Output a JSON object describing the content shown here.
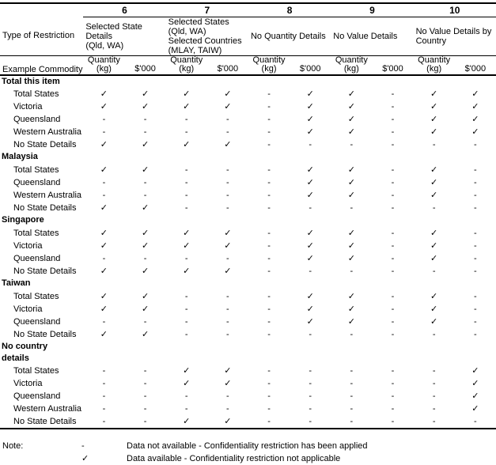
{
  "table": {
    "row_headers": {
      "type_of_restriction": "Type of Restriction",
      "example_commodity": "Example Commodity"
    },
    "measures": {
      "quantity": "Quantity",
      "quantity_unit": "(kg)",
      "value": "$'000"
    },
    "symbols": {
      "check": "✓",
      "dash": "-"
    },
    "columns": [
      {
        "number": "6",
        "restriction": "Selected State\nDetails\n(Qld, WA)"
      },
      {
        "number": "7",
        "restriction": "Selected States\n(Qld, WA)\nSelected Countries\n(MLAY, TAIW)"
      },
      {
        "number": "8",
        "restriction": "No Quantity Details"
      },
      {
        "number": "9",
        "restriction": "No Value Details"
      },
      {
        "number": "10",
        "restriction": "No Value Details by\nCountry"
      }
    ],
    "sections": [
      {
        "title": "Total this item",
        "rows": [
          {
            "label": "Total States",
            "cells": [
              "check",
              "check",
              "check",
              "check",
              "dash",
              "check",
              "check",
              "dash",
              "check",
              "check"
            ]
          },
          {
            "label": "Victoria",
            "cells": [
              "check",
              "check",
              "check",
              "check",
              "dash",
              "check",
              "check",
              "dash",
              "check",
              "check"
            ]
          },
          {
            "label": "Queensland",
            "cells": [
              "dash",
              "dash",
              "dash",
              "dash",
              "dash",
              "check",
              "check",
              "dash",
              "check",
              "check"
            ]
          },
          {
            "label": "Western Australia",
            "cells": [
              "dash",
              "dash",
              "dash",
              "dash",
              "dash",
              "check",
              "check",
              "dash",
              "check",
              "check"
            ]
          },
          {
            "label": "No State Details",
            "cells": [
              "check",
              "check",
              "check",
              "check",
              "dash",
              "dash",
              "dash",
              "dash",
              "dash",
              "dash"
            ]
          }
        ]
      },
      {
        "title": "Malaysia",
        "rows": [
          {
            "label": "Total States",
            "cells": [
              "check",
              "check",
              "dash",
              "dash",
              "dash",
              "check",
              "check",
              "dash",
              "check",
              "dash"
            ]
          },
          {
            "label": "Queensland",
            "cells": [
              "dash",
              "dash",
              "dash",
              "dash",
              "dash",
              "check",
              "check",
              "dash",
              "check",
              "dash"
            ]
          },
          {
            "label": "Western Australia",
            "cells": [
              "dash",
              "dash",
              "dash",
              "dash",
              "dash",
              "check",
              "check",
              "dash",
              "check",
              "dash"
            ]
          },
          {
            "label": "No State Details",
            "cells": [
              "check",
              "check",
              "dash",
              "dash",
              "dash",
              "dash",
              "dash",
              "dash",
              "dash",
              "dash"
            ]
          }
        ]
      },
      {
        "title": "Singapore",
        "rows": [
          {
            "label": "Total States",
            "cells": [
              "check",
              "check",
              "check",
              "check",
              "dash",
              "check",
              "check",
              "dash",
              "check",
              "dash"
            ]
          },
          {
            "label": "Victoria",
            "cells": [
              "check",
              "check",
              "check",
              "check",
              "dash",
              "check",
              "check",
              "dash",
              "check",
              "dash"
            ]
          },
          {
            "label": "Queensland",
            "cells": [
              "dash",
              "dash",
              "dash",
              "dash",
              "dash",
              "check",
              "check",
              "dash",
              "check",
              "dash"
            ]
          },
          {
            "label": "No State Details",
            "cells": [
              "check",
              "check",
              "check",
              "check",
              "dash",
              "dash",
              "dash",
              "dash",
              "dash",
              "dash"
            ]
          }
        ]
      },
      {
        "title": "Taiwan",
        "rows": [
          {
            "label": "Total States",
            "cells": [
              "check",
              "check",
              "dash",
              "dash",
              "dash",
              "check",
              "check",
              "dash",
              "check",
              "dash"
            ]
          },
          {
            "label": "Victoria",
            "cells": [
              "check",
              "check",
              "dash",
              "dash",
              "dash",
              "check",
              "check",
              "dash",
              "check",
              "dash"
            ]
          },
          {
            "label": "Queensland",
            "cells": [
              "dash",
              "dash",
              "dash",
              "dash",
              "dash",
              "check",
              "check",
              "dash",
              "check",
              "dash"
            ]
          },
          {
            "label": "No State Details",
            "cells": [
              "check",
              "check",
              "dash",
              "dash",
              "dash",
              "dash",
              "dash",
              "dash",
              "dash",
              "dash"
            ]
          }
        ]
      },
      {
        "title": "No country\ndetails",
        "rows": [
          {
            "label": "Total States",
            "cells": [
              "dash",
              "dash",
              "check",
              "check",
              "dash",
              "dash",
              "dash",
              "dash",
              "dash",
              "check"
            ]
          },
          {
            "label": "Victoria",
            "cells": [
              "dash",
              "dash",
              "check",
              "check",
              "dash",
              "dash",
              "dash",
              "dash",
              "dash",
              "check"
            ]
          },
          {
            "label": "Queensland",
            "cells": [
              "dash",
              "dash",
              "dash",
              "dash",
              "dash",
              "dash",
              "dash",
              "dash",
              "dash",
              "check"
            ]
          },
          {
            "label": "Western Australia",
            "cells": [
              "dash",
              "dash",
              "dash",
              "dash",
              "dash",
              "dash",
              "dash",
              "dash",
              "dash",
              "check"
            ]
          },
          {
            "label": "No State Details",
            "cells": [
              "dash",
              "dash",
              "check",
              "check",
              "dash",
              "dash",
              "dash",
              "dash",
              "dash",
              "dash"
            ]
          }
        ]
      }
    ]
  },
  "note": {
    "label": "Note:",
    "items": [
      {
        "symbol": "-",
        "kind": "dash",
        "text": "Data not available - Confidentiality restriction has been applied"
      },
      {
        "symbol": "✓",
        "kind": "check",
        "text": "Data available - Confidentiality restriction not applicable"
      }
    ]
  }
}
